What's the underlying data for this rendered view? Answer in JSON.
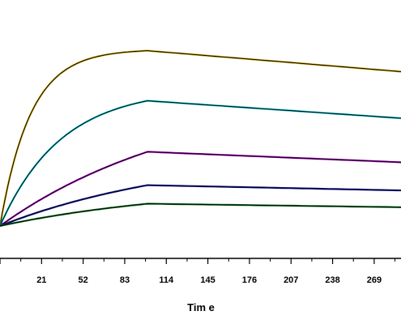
{
  "chart_data": {
    "type": "line",
    "title": "",
    "xlabel": "Tim e",
    "ylabel": "",
    "xlim": [
      -10,
      289
    ],
    "ylim": [
      0,
      1
    ],
    "x_ticks": [
      21,
      52,
      83,
      114,
      145,
      176,
      207,
      238,
      269
    ],
    "grid": false,
    "association_end": 100,
    "series": [
      {
        "color": "#c8a000",
        "fit_color": "#000000",
        "style": "exponential",
        "y_start": 0.0,
        "y_peak": 0.945,
        "y_end": 0.825
      },
      {
        "color": "#00b8c8",
        "fit_color": "#000000",
        "style": "curved",
        "y_start": 0.0,
        "y_peak": 0.675,
        "y_end": 0.575
      },
      {
        "color": "#a000b8",
        "fit_color": "#000000",
        "style": "near-linear",
        "y_start": 0.0,
        "y_peak": 0.4,
        "y_end": 0.34
      },
      {
        "color": "#1010a0",
        "fit_color": "#000000",
        "style": "near-linear",
        "y_start": 0.0,
        "y_peak": 0.22,
        "y_end": 0.19
      },
      {
        "color": "#0a7020",
        "fit_color": "#000000",
        "style": "near-linear",
        "y_start": 0.0,
        "y_peak": 0.12,
        "y_end": 0.1
      }
    ]
  }
}
